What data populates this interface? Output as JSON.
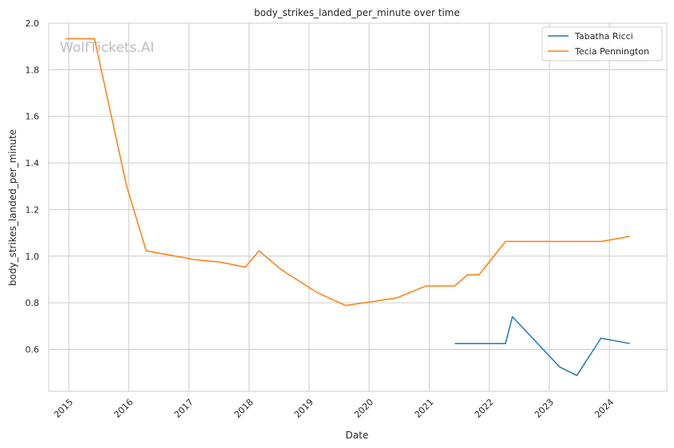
{
  "chart_data": {
    "type": "line",
    "title": "body_strikes_landed_per_minute over time",
    "xlabel": "Date",
    "ylabel": "body_strikes_landed_per_minute",
    "watermark": "WolfTickets.AI",
    "x_ticks": [
      "2015",
      "2016",
      "2017",
      "2018",
      "2019",
      "2020",
      "2021",
      "2022",
      "2023",
      "2024"
    ],
    "y_ticks": [
      "0.6",
      "0.8",
      "1.0",
      "1.2",
      "1.4",
      "1.6",
      "1.8",
      "2.0"
    ],
    "xlim": [
      "2014-09-01",
      "2024-12-15"
    ],
    "ylim": [
      0.42,
      2.0
    ],
    "grid": true,
    "legend_position": "top-right",
    "series": [
      {
        "name": "Tabatha Ricci",
        "color": "#1f77b4",
        "points": [
          {
            "x": "2021-06-05",
            "y": 0.625
          },
          {
            "x": "2022-04-09",
            "y": 0.625
          },
          {
            "x": "2022-05-21",
            "y": 0.74
          },
          {
            "x": "2023-03-04",
            "y": 0.525
          },
          {
            "x": "2023-06-17",
            "y": 0.488
          },
          {
            "x": "2023-11-11",
            "y": 0.648
          },
          {
            "x": "2024-05-04",
            "y": 0.625
          }
        ]
      },
      {
        "name": "Tecia Pennington",
        "color": "#ff7f0e",
        "points": [
          {
            "x": "2014-12-13",
            "y": 1.933
          },
          {
            "x": "2015-06-06",
            "y": 1.933
          },
          {
            "x": "2015-12-19",
            "y": 1.3
          },
          {
            "x": "2016-04-16",
            "y": 1.023
          },
          {
            "x": "2017-02-04",
            "y": 0.985
          },
          {
            "x": "2017-07-08",
            "y": 0.975
          },
          {
            "x": "2017-12-09",
            "y": 0.953
          },
          {
            "x": "2018-03-03",
            "y": 1.023
          },
          {
            "x": "2018-07-14",
            "y": 0.943
          },
          {
            "x": "2019-02-16",
            "y": 0.845
          },
          {
            "x": "2019-08-10",
            "y": 0.788
          },
          {
            "x": "2020-06-13",
            "y": 0.82
          },
          {
            "x": "2020-12-12",
            "y": 0.872
          },
          {
            "x": "2021-06-05",
            "y": 0.872
          },
          {
            "x": "2021-08-21",
            "y": 0.92
          },
          {
            "x": "2021-10-30",
            "y": 0.92
          },
          {
            "x": "2022-04-09",
            "y": 1.063
          },
          {
            "x": "2023-11-11",
            "y": 1.063
          },
          {
            "x": "2024-05-04",
            "y": 1.085
          }
        ]
      }
    ]
  }
}
